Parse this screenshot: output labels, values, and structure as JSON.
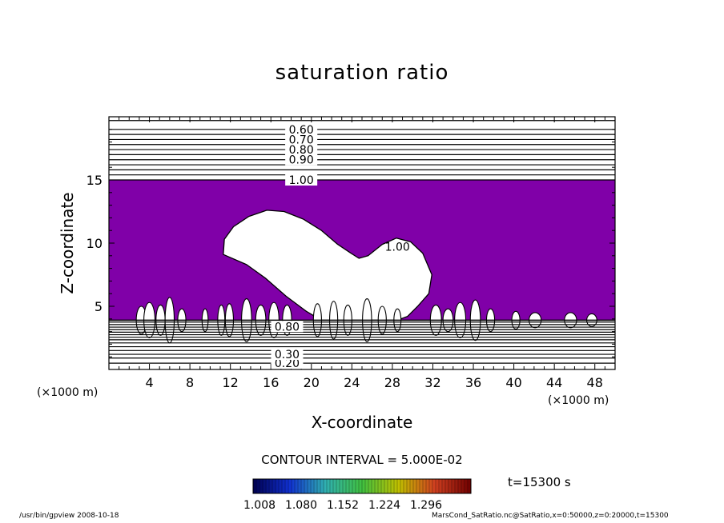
{
  "chart_data": {
    "type": "contour",
    "title": "saturation ratio",
    "xlabel": "X-coordinate",
    "ylabel": "Z-coordinate",
    "x_unit_label_left": "(×1000 m)",
    "x_unit_label_right": "(×1000 m)",
    "xlim": [
      0,
      50
    ],
    "ylim": [
      0,
      20
    ],
    "x_ticks": [
      4,
      8,
      12,
      16,
      20,
      24,
      28,
      32,
      36,
      40,
      44,
      48
    ],
    "y_ticks": [
      5,
      10,
      15
    ],
    "contour_interval_label": "CONTOUR INTERVAL = 5.000E-02",
    "time_label": "t=15300 s",
    "upper_contour_labels": [
      {
        "text": "0.60",
        "z": 19.0
      },
      {
        "text": "0.70",
        "z": 18.2
      },
      {
        "text": "0.80",
        "z": 17.4
      },
      {
        "text": "0.90",
        "z": 16.6
      },
      {
        "text": "1.00",
        "z": 15.0
      }
    ],
    "lower_contour_labels": [
      {
        "text": "0.20",
        "z": 0.5
      },
      {
        "text": "0.30",
        "z": 1.2
      },
      {
        "text": "0.80",
        "z": 3.4
      }
    ],
    "plume_label": {
      "text": "1.00",
      "x": 28.5,
      "z": 9.7
    },
    "upper_contour_levels_z": [
      19.7,
      19.0,
      18.6,
      18.2,
      17.8,
      17.4,
      17.0,
      16.6,
      16.2,
      15.8,
      15.4,
      15.0
    ],
    "lower_contour_levels_z": [
      0.5,
      0.9,
      1.2,
      1.5,
      1.8,
      2.1,
      2.35,
      2.55,
      2.75,
      2.95,
      3.15,
      3.35,
      3.55,
      3.75
    ],
    "supersaturated_band_z": [
      3.9,
      15.0
    ],
    "shading_color": "#8000a8",
    "colorbar": {
      "tick_labels": [
        "1.008",
        "1.080",
        "1.152",
        "1.224",
        "1.296"
      ],
      "colors": [
        "#000050",
        "#1030d0",
        "#30b0b0",
        "#40c040",
        "#c0c000",
        "#d04020",
        "#700000"
      ]
    },
    "footer_left": "/usr/bin/gpview   2008-10-18",
    "footer_right": "MarsCond_SatRatio.nc@SatRatio,x=0:50000,z=0:20000,t=15300"
  }
}
